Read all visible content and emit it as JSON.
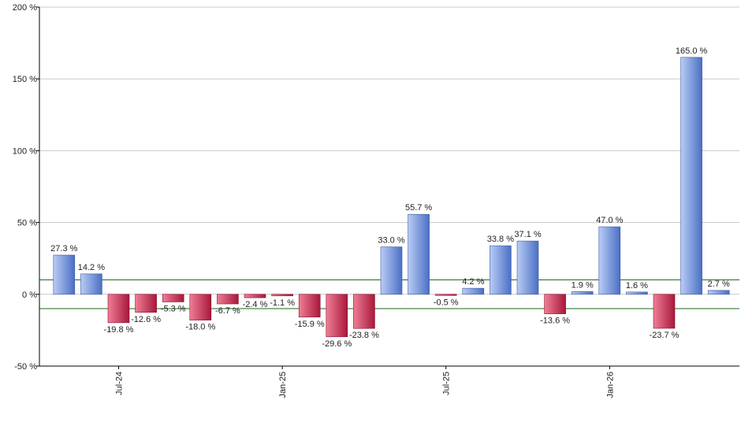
{
  "chart_data": {
    "type": "bar",
    "title": "",
    "xlabel": "",
    "ylabel": "",
    "ylim": [
      -50,
      200
    ],
    "yticks": [
      -50,
      0,
      50,
      100,
      150,
      200
    ],
    "ytick_labels": [
      "-50 %",
      "0 %",
      "50 %",
      "100 %",
      "150 %",
      "200 %"
    ],
    "reference_lines": [
      10,
      -10
    ],
    "grid": "horizontal",
    "x_tick_labels": [
      {
        "label": "Jul-24",
        "index": 2
      },
      {
        "label": "Jan-25",
        "index": 8
      },
      {
        "label": "Jul-25",
        "index": 14
      },
      {
        "label": "Jan-26",
        "index": 20
      }
    ],
    "values": [
      27.3,
      14.2,
      -19.8,
      -12.6,
      -5.3,
      -18.0,
      -6.7,
      -2.4,
      -1.1,
      -15.9,
      -29.6,
      -23.8,
      33.0,
      55.7,
      -0.5,
      4.2,
      33.8,
      37.1,
      -13.6,
      1.9,
      47.0,
      1.6,
      -23.7,
      165.0,
      2.7
    ],
    "value_labels": [
      "27.3 %",
      "14.2 %",
      "-19.8 %",
      "-12.6 %",
      "-5.3 %",
      "-18.0 %",
      "-6.7 %",
      "-2.4 %",
      "-1.1 %",
      "-15.9 %",
      "-29.6 %",
      "-23.8 %",
      "33.0 %",
      "55.7 %",
      "-0.5 %",
      "4.2 %",
      "33.8 %",
      "37.1 %",
      "-13.6 %",
      "1.9 %",
      "47.0 %",
      "1.6 %",
      "-23.7 %",
      "165.0 %",
      "2.7 %"
    ],
    "colors": {
      "positive_light": "#b9ccf5",
      "positive_dark": "#4a6fc4",
      "negative_light": "#f07e95",
      "negative_dark": "#a8173b",
      "reference_line": "#1e6b1e",
      "grid": "#c8c8c8",
      "axis": "#000000"
    }
  }
}
